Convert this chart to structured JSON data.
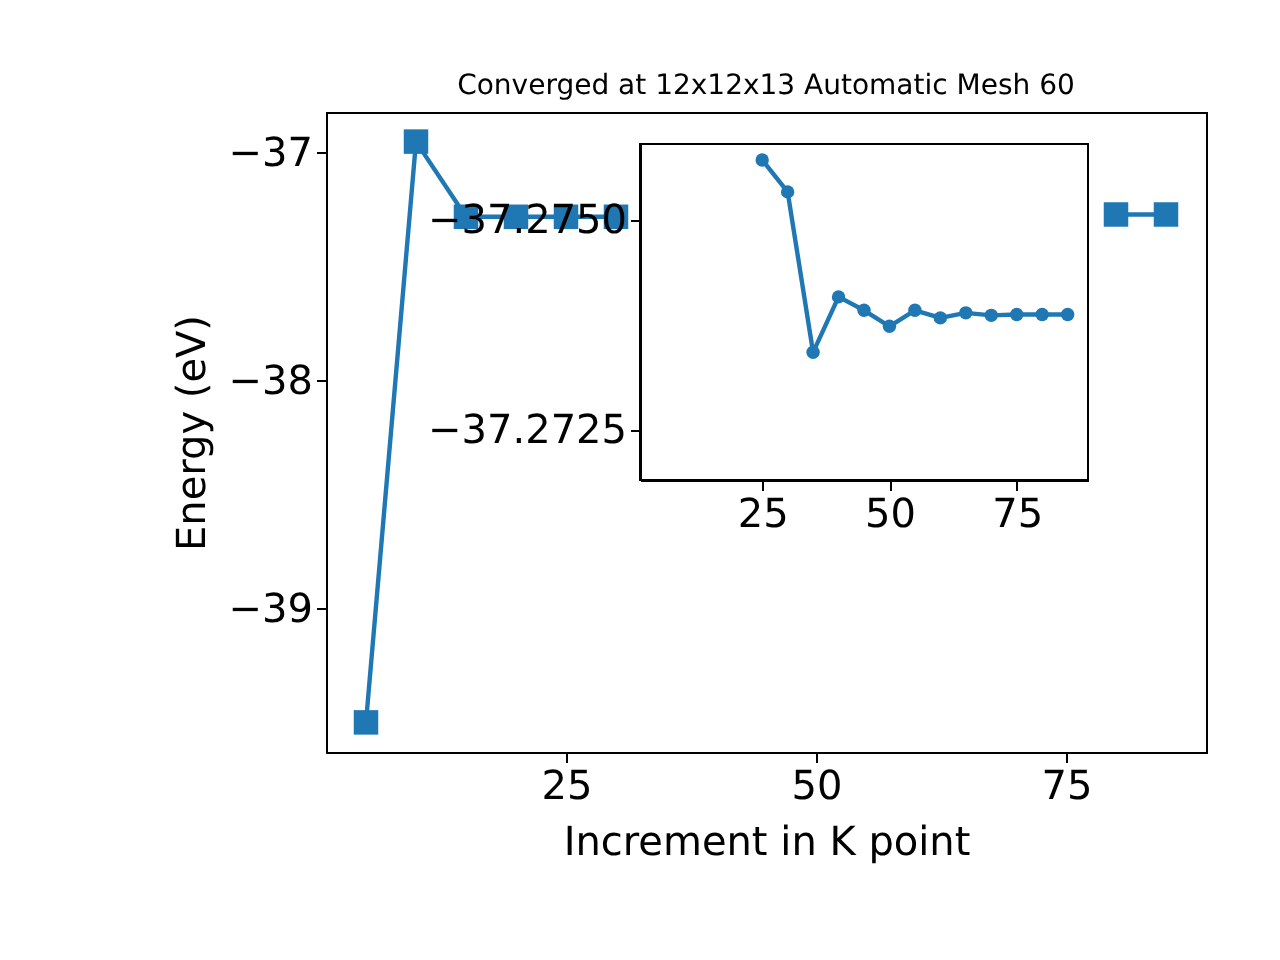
{
  "chart_data": [
    {
      "type": "line",
      "title": "Converged at 12x12x13 Automatic Mesh 60",
      "xlabel": "Increment in K point",
      "ylabel": "Energy (eV)",
      "x": [
        5,
        10,
        15,
        20,
        25,
        30,
        35,
        40,
        45,
        50,
        55,
        60,
        65,
        70,
        75,
        80,
        85
      ],
      "series": [
        {
          "color": "#1f77b4",
          "values": [
            -39.5,
            -36.95,
            -37.28,
            -37.28,
            -37.28,
            -37.28,
            null,
            null,
            null,
            null,
            null,
            null,
            null,
            null,
            null,
            -37.27,
            -37.27
          ]
        }
      ],
      "xlim": [
        1,
        89
      ],
      "ylim": [
        -39.63,
        -36.82
      ],
      "xticks": [
        25,
        50,
        75
      ],
      "yticks": [
        {
          "value": -39,
          "label": "−39"
        },
        {
          "value": -38,
          "label": "−38"
        },
        {
          "value": -37,
          "label": "−37"
        }
      ],
      "marker": "square",
      "grid": false
    },
    {
      "type": "line",
      "x": [
        25,
        30,
        35,
        40,
        45,
        50,
        55,
        60,
        65,
        70,
        75,
        80,
        85
      ],
      "series": [
        {
          "color": "#1f77b4",
          "values": [
            -37.27571,
            -37.27533,
            -37.27342,
            -37.27408,
            -37.27392,
            -37.27373,
            -37.27392,
            -37.27383,
            -37.27389,
            -37.27386,
            -37.27387,
            -37.27387,
            -37.27387
          ]
        }
      ],
      "xlim": [
        1,
        89
      ],
      "ylim": [
        -37.2719,
        -37.2759
      ],
      "xticks": [
        25,
        50,
        75
      ],
      "yticks": [
        {
          "value": -37.275,
          "label": "−37.2750"
        },
        {
          "value": -37.2725,
          "label": "−37.2725"
        }
      ],
      "marker": "circle",
      "grid": false
    }
  ]
}
